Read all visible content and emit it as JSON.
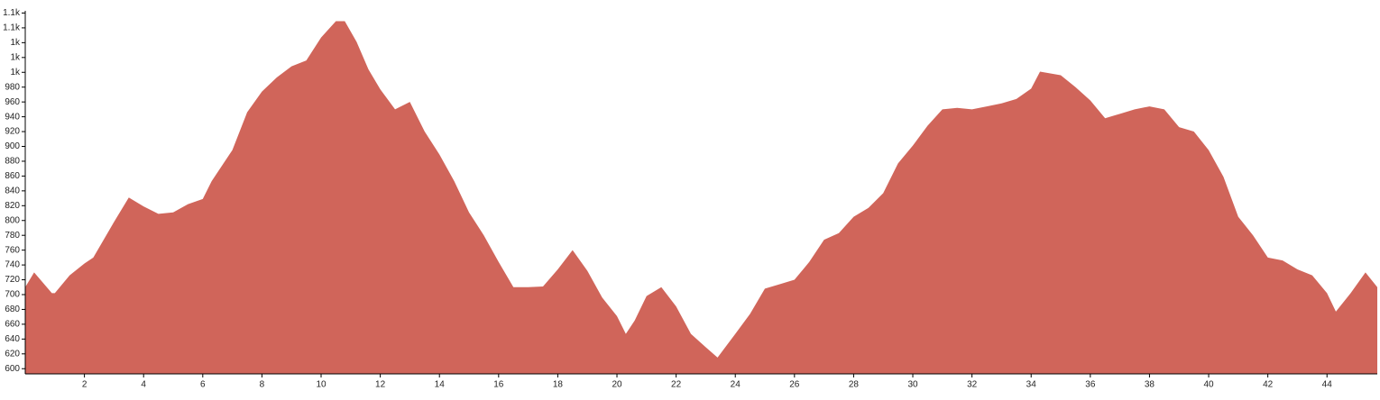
{
  "chart_data": {
    "type": "area",
    "color": "#d0655a",
    "x": [
      0,
      0.3,
      0.6,
      0.9,
      1.0,
      1.5,
      2,
      2.3,
      3,
      3.5,
      4,
      4.5,
      5,
      5.5,
      6,
      6.3,
      7,
      7.5,
      8,
      8.5,
      9,
      9.5,
      10,
      10.5,
      10.8,
      11.2,
      11.6,
      12,
      12.5,
      13,
      13.5,
      14,
      14.5,
      15,
      15.5,
      16,
      16.5,
      17,
      17.5,
      18,
      18.5,
      19,
      19.5,
      20,
      20.3,
      20.6,
      21,
      21.5,
      22,
      22.5,
      23,
      23.4,
      24,
      24.5,
      25,
      25.5,
      26,
      26.5,
      27,
      27.5,
      28,
      28.5,
      29,
      29.5,
      30,
      30.5,
      31,
      31.5,
      32,
      32.5,
      33,
      33.5,
      34,
      34.3,
      35,
      35.5,
      36,
      36.5,
      37,
      37.5,
      38,
      38.5,
      39,
      39.5,
      40,
      40.5,
      41,
      41.5,
      42,
      42.5,
      43,
      43.5,
      44,
      44.3,
      44.8,
      45.3,
      45.7
    ],
    "values": [
      710,
      730,
      716,
      702,
      702,
      726,
      742,
      750,
      798,
      831,
      819,
      809,
      811,
      822,
      829,
      853,
      895,
      946,
      974,
      993,
      1008,
      1016,
      1047,
      1069,
      1069,
      1041,
      1004,
      977,
      950,
      960,
      920,
      889,
      853,
      811,
      780,
      744,
      710,
      710,
      711,
      734,
      760,
      732,
      696,
      671,
      647,
      665,
      698,
      710,
      684,
      647,
      629,
      615,
      647,
      674,
      708,
      714,
      720,
      744,
      774,
      783,
      805,
      817,
      837,
      877,
      901,
      928,
      950,
      952,
      950,
      954,
      958,
      964,
      978,
      1001,
      996,
      980,
      962,
      938,
      944,
      950,
      954,
      950,
      926,
      920,
      895,
      859,
      805,
      780,
      750,
      746,
      734,
      726,
      702,
      677,
      702,
      730,
      710
    ],
    "xlim": [
      0,
      45.7
    ],
    "ylim": [
      593,
      1083
    ],
    "xticks": [
      2,
      4,
      6,
      8,
      10,
      12,
      14,
      16,
      18,
      20,
      22,
      24,
      26,
      28,
      30,
      32,
      34,
      36,
      38,
      40,
      42,
      44
    ],
    "yticks": [
      600,
      620,
      640,
      660,
      680,
      700,
      720,
      740,
      760,
      780,
      800,
      820,
      840,
      860,
      880,
      900,
      920,
      940,
      960,
      980,
      {
        "value": 1000,
        "label": "1k"
      },
      {
        "value": 1020,
        "label": "1k"
      },
      {
        "value": 1040,
        "label": "1k"
      },
      {
        "value": 1060,
        "label": "1.1k"
      },
      {
        "value": 1080,
        "label": "1.1k"
      }
    ]
  }
}
